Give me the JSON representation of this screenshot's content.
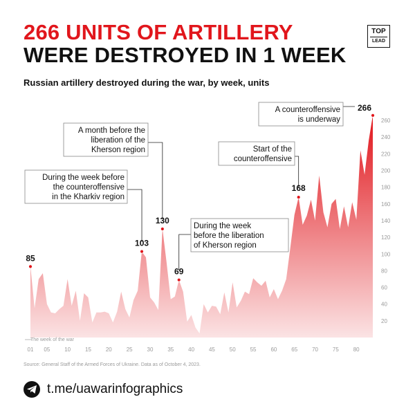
{
  "header": {
    "title_line1": "266 UNITS OF ARTILLERY",
    "title_line2": "WERE DESTROYED IN 1 WEEK",
    "subtitle": "Russian artillery destroyed during the war, by week, units",
    "logo_top": "TOP",
    "logo_bottom": "LEAD"
  },
  "chart_data": {
    "type": "area",
    "title": "Russian artillery destroyed during the war, by week, units",
    "x_axis_label": "The week of the war",
    "x_ticks": [
      "01",
      "05",
      "10",
      "15",
      "20",
      "25",
      "30",
      "35",
      "40",
      "45",
      "50",
      "55",
      "60",
      "65",
      "70",
      "75",
      "80"
    ],
    "y_ticks": [
      "20",
      "40",
      "60",
      "80",
      "100",
      "120",
      "140",
      "160",
      "180",
      "200",
      "220",
      "240",
      "260"
    ],
    "ylim": [
      0,
      270
    ],
    "xlim": [
      1,
      85
    ],
    "grid": false,
    "colors": {
      "fill_top": "#e1161c",
      "fill_bottom": "#fbe3e4",
      "accent": "#e1161c"
    },
    "series": [
      {
        "x": [
          1,
          2,
          3,
          4,
          5,
          6,
          7,
          8,
          9,
          10,
          11,
          12,
          13,
          14,
          15,
          16,
          17,
          18,
          19,
          20,
          21,
          22,
          23,
          24,
          25,
          26,
          27,
          28,
          29,
          30,
          31,
          32,
          33,
          34,
          35,
          36,
          37,
          38,
          39,
          40,
          41,
          42,
          43,
          44,
          45,
          46,
          47,
          48,
          49,
          50,
          51,
          52,
          53,
          54,
          55,
          56,
          57,
          58,
          59,
          60,
          61,
          62,
          63,
          64,
          65,
          66,
          67,
          68,
          69,
          70,
          71,
          72,
          73,
          74,
          75,
          76,
          77,
          78,
          79,
          80,
          81,
          82,
          83,
          84
        ],
        "values": [
          85,
          35,
          70,
          77,
          40,
          30,
          29,
          34,
          38,
          70,
          38,
          56,
          20,
          53,
          48,
          18,
          30,
          30,
          31,
          29,
          18,
          31,
          55,
          34,
          24,
          45,
          56,
          103,
          96,
          48,
          42,
          33,
          130,
          90,
          46,
          49,
          69,
          55,
          19,
          27,
          12,
          5,
          40,
          30,
          38,
          37,
          28,
          54,
          30,
          66,
          36,
          44,
          55,
          52,
          71,
          66,
          62,
          68,
          48,
          58,
          46,
          56,
          70,
          108,
          147,
          168,
          135,
          146,
          165,
          140,
          194,
          150,
          132,
          160,
          166,
          130,
          157,
          132,
          162,
          141,
          224,
          195,
          236,
          266
        ]
      }
    ],
    "labeled_points": [
      {
        "x": 1,
        "value": "85"
      },
      {
        "x": 28,
        "value": "103"
      },
      {
        "x": 33,
        "value": "130"
      },
      {
        "x": 37,
        "value": "69"
      },
      {
        "x": 66,
        "value": "168"
      },
      {
        "x": 84,
        "value": "266"
      }
    ],
    "annotations": [
      {
        "x": 28,
        "lines": [
          "During the week before",
          "the counteroffensive",
          "in the Kharkiv region"
        ]
      },
      {
        "x": 33,
        "lines": [
          "A month before the",
          "liberation of the",
          "Kherson region"
        ]
      },
      {
        "x": 37,
        "lines": [
          "During the week",
          "before the liberation",
          "of Kherson region"
        ]
      },
      {
        "x": 66,
        "lines": [
          "Start of the",
          "counteroffensive"
        ]
      },
      {
        "x": 84,
        "lines": [
          "A counteroffensive",
          "is underway"
        ]
      }
    ]
  },
  "source": "Source: General Staff of the Armed Forces of Ukraine. Data as of October 4, 2023.",
  "footer": {
    "icon": "telegram-icon",
    "link": "t.me/uawarinfographics"
  }
}
